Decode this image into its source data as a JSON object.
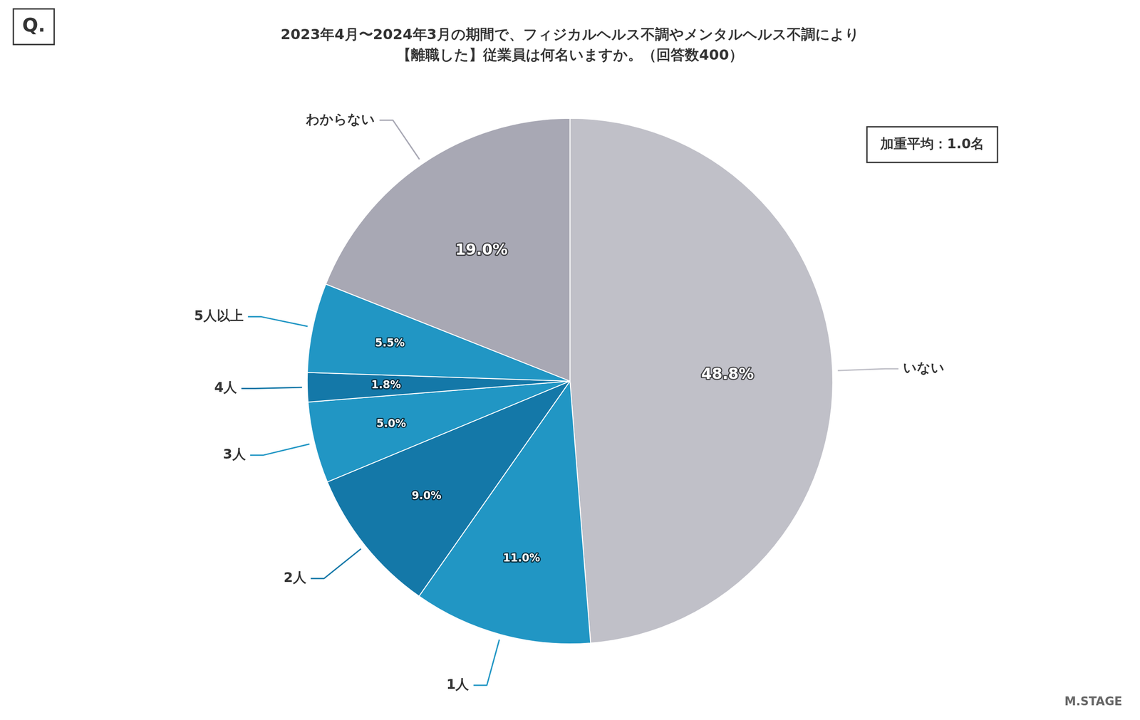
{
  "chart_data": {
    "type": "pie",
    "title": "2023年4月〜2024年3月の期間で、フィジカルヘルス不調やメンタルヘルス不調により",
    "subtitle": "【離職した】従業員は何名いますか。（回答数400）",
    "categories": [
      "いない",
      "1人",
      "2人",
      "3人",
      "4人",
      "5人以上",
      "わからない"
    ],
    "values": [
      48.8,
      11.0,
      9.0,
      5.0,
      1.8,
      5.5,
      19.0
    ],
    "value_labels": [
      "48.8%",
      "11.0%",
      "9.0%",
      "5.0%",
      "1.8%",
      "5.5%",
      "19.0%"
    ],
    "colors": [
      "#c0c0c8",
      "#2196c4",
      "#1478a8",
      "#2196c4",
      "#1478a8",
      "#2196c4",
      "#a8a8b4"
    ],
    "data_labels": true,
    "annotations": [
      "Q.",
      "加重平均：1.0名",
      "M.STAGE"
    ]
  }
}
